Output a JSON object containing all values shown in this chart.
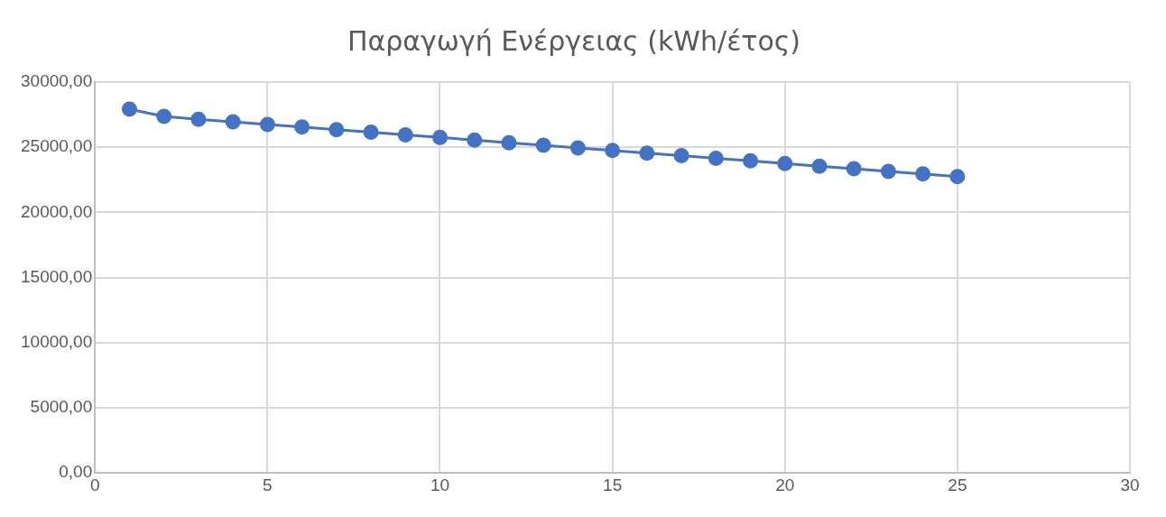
{
  "chart_data": {
    "type": "line",
    "title": "Παραγωγή Ενέργειας (kWh/έτος)",
    "x": [
      1,
      2,
      3,
      4,
      5,
      6,
      7,
      8,
      9,
      10,
      11,
      12,
      13,
      14,
      15,
      16,
      17,
      18,
      19,
      20,
      21,
      22,
      23,
      24,
      25
    ],
    "series": [
      {
        "color": "#4472c4",
        "values": [
          27920,
          27370,
          27150,
          26950,
          26750,
          26550,
          26350,
          26150,
          25950,
          25750,
          25550,
          25350,
          25150,
          24950,
          24750,
          24550,
          24350,
          24150,
          23950,
          23750,
          23550,
          23350,
          23150,
          22950,
          22750
        ]
      }
    ],
    "xlim": [
      0,
      30
    ],
    "xticks": [
      0,
      5,
      10,
      15,
      20,
      25,
      30
    ],
    "ylim": [
      0,
      30000
    ],
    "yticks": [
      {
        "value": 0,
        "label": "0,00"
      },
      {
        "value": 5000,
        "label": "5000,00"
      },
      {
        "value": 10000,
        "label": "10000,00"
      },
      {
        "value": 15000,
        "label": "15000,00"
      },
      {
        "value": 20000,
        "label": "20000,00"
      },
      {
        "value": 25000,
        "label": "25000,00"
      },
      {
        "value": 30000,
        "label": "30000,00"
      }
    ],
    "grid": true,
    "legend": false,
    "marker": "circle",
    "line_style": "solid"
  }
}
